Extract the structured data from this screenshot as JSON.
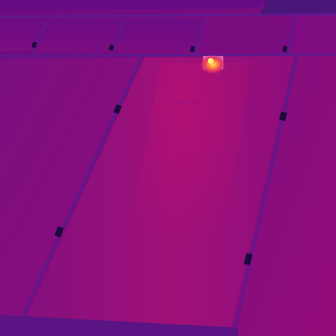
{
  "image": {
    "kind": "thermal-infrared-photo",
    "subject": "solar-panel-array",
    "palette": "ironbow",
    "colors": {
      "background": "#7a0d7e",
      "panel_dark": "#6d0b7a",
      "panel_mid": "#8d0c7e",
      "panel_warm": "#a40f76",
      "frame_line": "#5e1a8c",
      "shadow_deep": "#3a1a70",
      "hotspot_halo": "#ff7ab4",
      "hotspot_glow": "#ff4f3a",
      "hotspot_core": "#ffe36a",
      "clamp": "#1c0a3c"
    },
    "hotspot": {
      "count": 1,
      "severity": "single-cell-anomaly"
    },
    "clamps": {
      "count": 8,
      "icon": "module-clamp-icon"
    }
  }
}
